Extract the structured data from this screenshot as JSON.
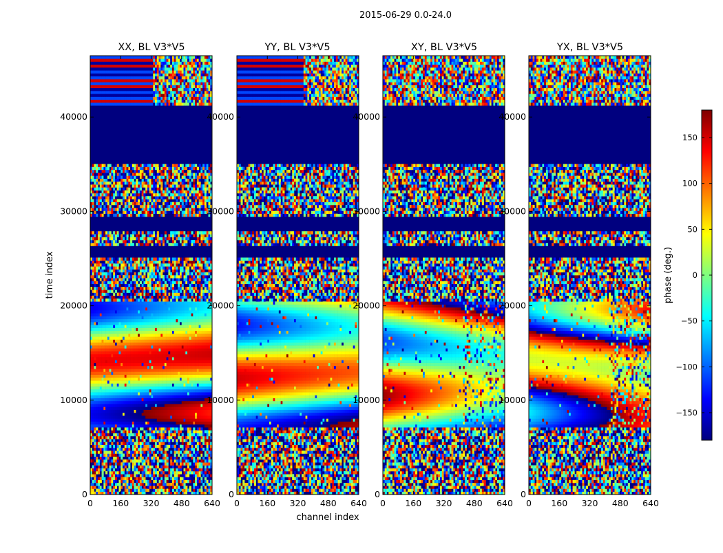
{
  "figure": {
    "suptitle": "2015-06-29 0.0-24.0"
  },
  "chart_data": {
    "type": "heatmap",
    "xlabel": "channel index",
    "ylabel": "time index",
    "xlim": [
      0,
      640
    ],
    "ylim": [
      0,
      46500
    ],
    "x_ticks": [
      0,
      160,
      320,
      480,
      640
    ],
    "y_ticks": [
      0,
      10000,
      20000,
      30000,
      40000
    ],
    "colorbar": {
      "label": "phase (deg.)",
      "range": [
        -180,
        180
      ],
      "ticks": [
        150,
        100,
        50,
        0,
        -50,
        -100,
        -150
      ],
      "tick_labels": [
        "150",
        "100",
        "50",
        "0",
        "−50",
        "−100",
        "−150"
      ],
      "colormap": "jet",
      "colors": [
        "#00007f",
        "#0000ff",
        "#007fff",
        "#00ffff",
        "#7fff7f",
        "#ffff00",
        "#ff7f00",
        "#ff0000",
        "#7f0000"
      ]
    },
    "panels": [
      {
        "title": "XX, BL V3*V5",
        "phase_offset": 0,
        "slope": 0.55,
        "ripple": 0
      },
      {
        "title": "YY, BL V3*V5",
        "phase_offset": 10,
        "slope": 0.55,
        "ripple": 0
      },
      {
        "title": "XY, BL V3*V5",
        "phase_offset": 30,
        "slope": 0.9,
        "ripple": 0.25
      },
      {
        "title": "YX, BL V3*V5",
        "phase_offset": 170,
        "slope": 1.1,
        "ripple": 0.35
      }
    ],
    "bands": [
      {
        "start": 0,
        "end": 7000,
        "kind": "noise"
      },
      {
        "start": 7000,
        "end": 20600,
        "kind": "smooth"
      },
      {
        "start": 20600,
        "end": 25000,
        "kind": "noise"
      },
      {
        "start": 25000,
        "end": 26200,
        "kind": "blank"
      },
      {
        "start": 26200,
        "end": 27900,
        "kind": "noise"
      },
      {
        "start": 27900,
        "end": 29600,
        "kind": "blank"
      },
      {
        "start": 29600,
        "end": 34900,
        "kind": "noise"
      },
      {
        "start": 34900,
        "end": 41200,
        "kind": "blank"
      },
      {
        "start": 41200,
        "end": 46500,
        "kind": "stripes"
      }
    ]
  }
}
